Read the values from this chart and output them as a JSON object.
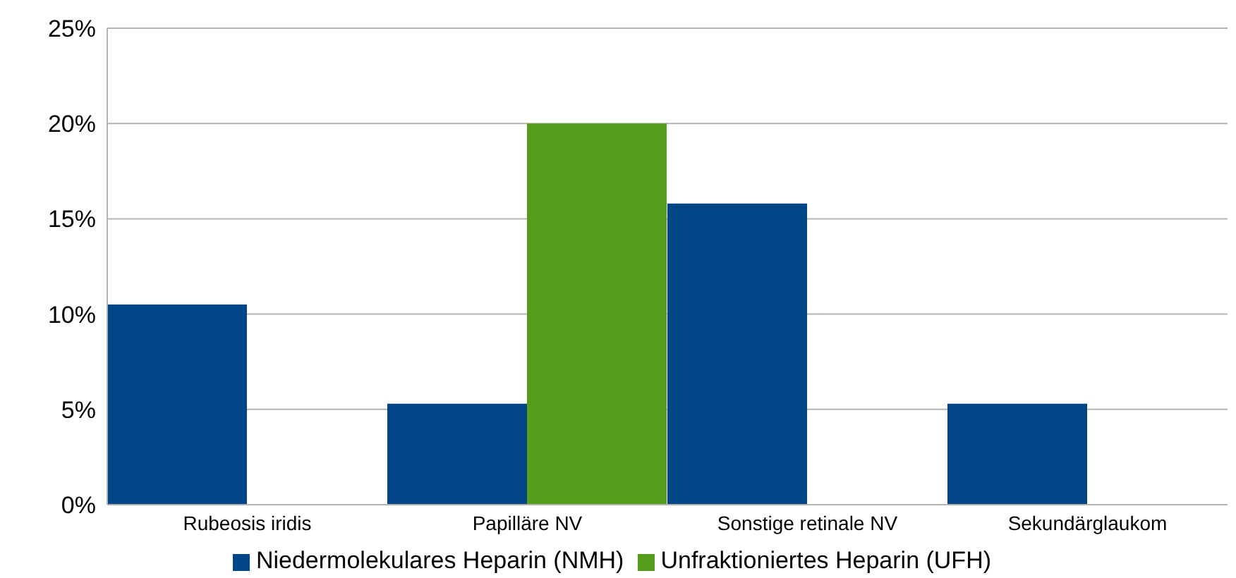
{
  "chart_data": {
    "type": "bar",
    "categories": [
      "Rubeosis iridis",
      "Papilläre NV",
      "Sonstige retinale NV",
      "Sekundärglaukom"
    ],
    "series": [
      {
        "name": "Niedermolekulares Heparin (NMH)",
        "color": "#004586",
        "values": [
          10.5,
          5.3,
          15.8,
          5.3
        ]
      },
      {
        "name": "Unfraktioniertes Heparin (UFH)",
        "color": "#579d1c",
        "values": [
          0,
          20,
          0,
          0
        ]
      }
    ],
    "ylim": [
      0,
      25
    ],
    "yticks": [
      {
        "value": 0,
        "label": "0%"
      },
      {
        "value": 5,
        "label": "5%"
      },
      {
        "value": 10,
        "label": "10%"
      },
      {
        "value": 15,
        "label": "15%"
      },
      {
        "value": 20,
        "label": "20%"
      },
      {
        "value": 25,
        "label": "25%"
      }
    ],
    "grid": "y",
    "legend": "bottom"
  }
}
